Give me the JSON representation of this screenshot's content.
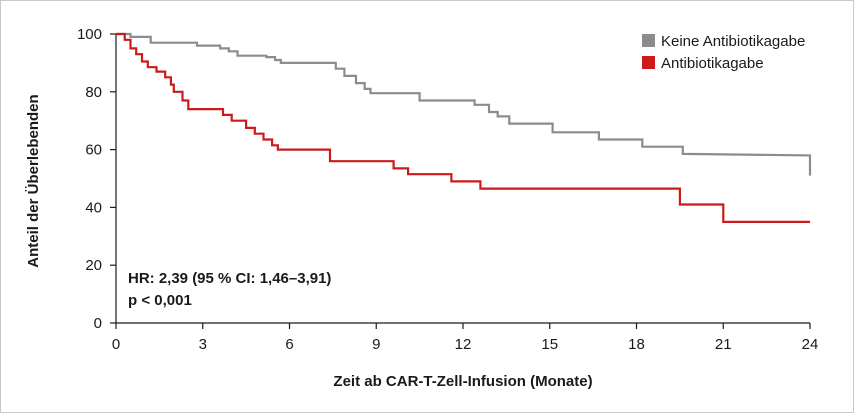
{
  "chart_data": {
    "type": "line",
    "subtype": "kaplan-meier-step",
    "xlabel": "Zeit ab CAR-T-Zell-Infusion (Monate)",
    "ylabel": "Anteil der Überlebenden",
    "xlim": [
      0,
      24
    ],
    "ylim": [
      0,
      100
    ],
    "xticks": [
      "0",
      "3",
      "6",
      "9",
      "12",
      "15",
      "18",
      "21",
      "24"
    ],
    "yticks": [
      "0",
      "20",
      "40",
      "60",
      "80",
      "100"
    ],
    "grid": false,
    "legend_position": "top-right",
    "annotations": {
      "hr": "HR: 2,39 (95 % CI: 1,46–3,91)",
      "p": "p < 0,001"
    },
    "series": [
      {
        "name": "Keine Antibiotikagabe",
        "color": "#8c8c8c",
        "points": [
          [
            0,
            100
          ],
          [
            0.5,
            100
          ],
          [
            0.5,
            99
          ],
          [
            1.2,
            99
          ],
          [
            1.2,
            97
          ],
          [
            2.8,
            97
          ],
          [
            2.8,
            96
          ],
          [
            3.6,
            96
          ],
          [
            3.6,
            95
          ],
          [
            3.9,
            95
          ],
          [
            3.9,
            94
          ],
          [
            4.2,
            94
          ],
          [
            4.2,
            92.5
          ],
          [
            5.2,
            92.5
          ],
          [
            5.2,
            92
          ],
          [
            5.5,
            92
          ],
          [
            5.5,
            91
          ],
          [
            5.7,
            91
          ],
          [
            5.7,
            90
          ],
          [
            7.6,
            90
          ],
          [
            7.6,
            88
          ],
          [
            7.9,
            88
          ],
          [
            7.9,
            85.5
          ],
          [
            8.3,
            85.5
          ],
          [
            8.3,
            83
          ],
          [
            8.6,
            83
          ],
          [
            8.6,
            81
          ],
          [
            8.8,
            81
          ],
          [
            8.8,
            79.5
          ],
          [
            10.5,
            79.5
          ],
          [
            10.5,
            77
          ],
          [
            12.4,
            77
          ],
          [
            12.4,
            75.5
          ],
          [
            12.9,
            75.5
          ],
          [
            12.9,
            73
          ],
          [
            13.2,
            73
          ],
          [
            13.2,
            71.5
          ],
          [
            13.6,
            71.5
          ],
          [
            13.6,
            69
          ],
          [
            15.1,
            69
          ],
          [
            15.1,
            66
          ],
          [
            16.7,
            66
          ],
          [
            16.7,
            63.5
          ],
          [
            18.2,
            63.5
          ],
          [
            18.2,
            61
          ],
          [
            19.6,
            61
          ],
          [
            19.6,
            58.5
          ],
          [
            24,
            58
          ],
          [
            24,
            51
          ]
        ]
      },
      {
        "name": "Antibiotikagabe",
        "color": "#cc1a1a",
        "points": [
          [
            0,
            100
          ],
          [
            0.3,
            100
          ],
          [
            0.3,
            98
          ],
          [
            0.5,
            98
          ],
          [
            0.5,
            95
          ],
          [
            0.7,
            95
          ],
          [
            0.7,
            93
          ],
          [
            0.9,
            93
          ],
          [
            0.9,
            90.5
          ],
          [
            1.1,
            90.5
          ],
          [
            1.1,
            88.5
          ],
          [
            1.4,
            88.5
          ],
          [
            1.4,
            87
          ],
          [
            1.7,
            87
          ],
          [
            1.7,
            85
          ],
          [
            1.9,
            85
          ],
          [
            1.9,
            82.5
          ],
          [
            2.0,
            82.5
          ],
          [
            2.0,
            80
          ],
          [
            2.3,
            80
          ],
          [
            2.3,
            77
          ],
          [
            2.5,
            77
          ],
          [
            2.5,
            74
          ],
          [
            3.7,
            74
          ],
          [
            3.7,
            72
          ],
          [
            4.0,
            72
          ],
          [
            4.0,
            70
          ],
          [
            4.5,
            70
          ],
          [
            4.5,
            67.5
          ],
          [
            4.8,
            67.5
          ],
          [
            4.8,
            65.5
          ],
          [
            5.1,
            65.5
          ],
          [
            5.1,
            63.5
          ],
          [
            5.4,
            63.5
          ],
          [
            5.4,
            61.5
          ],
          [
            5.6,
            61.5
          ],
          [
            5.6,
            60
          ],
          [
            7.4,
            60
          ],
          [
            7.4,
            56
          ],
          [
            9.6,
            56
          ],
          [
            9.6,
            53.5
          ],
          [
            10.1,
            53.5
          ],
          [
            10.1,
            51.5
          ],
          [
            11.6,
            51.5
          ],
          [
            11.6,
            49
          ],
          [
            12.6,
            49
          ],
          [
            12.6,
            46.5
          ],
          [
            19.5,
            46.5
          ],
          [
            19.5,
            41
          ],
          [
            21.0,
            41
          ],
          [
            21.0,
            35
          ],
          [
            24,
            35
          ]
        ]
      }
    ]
  }
}
